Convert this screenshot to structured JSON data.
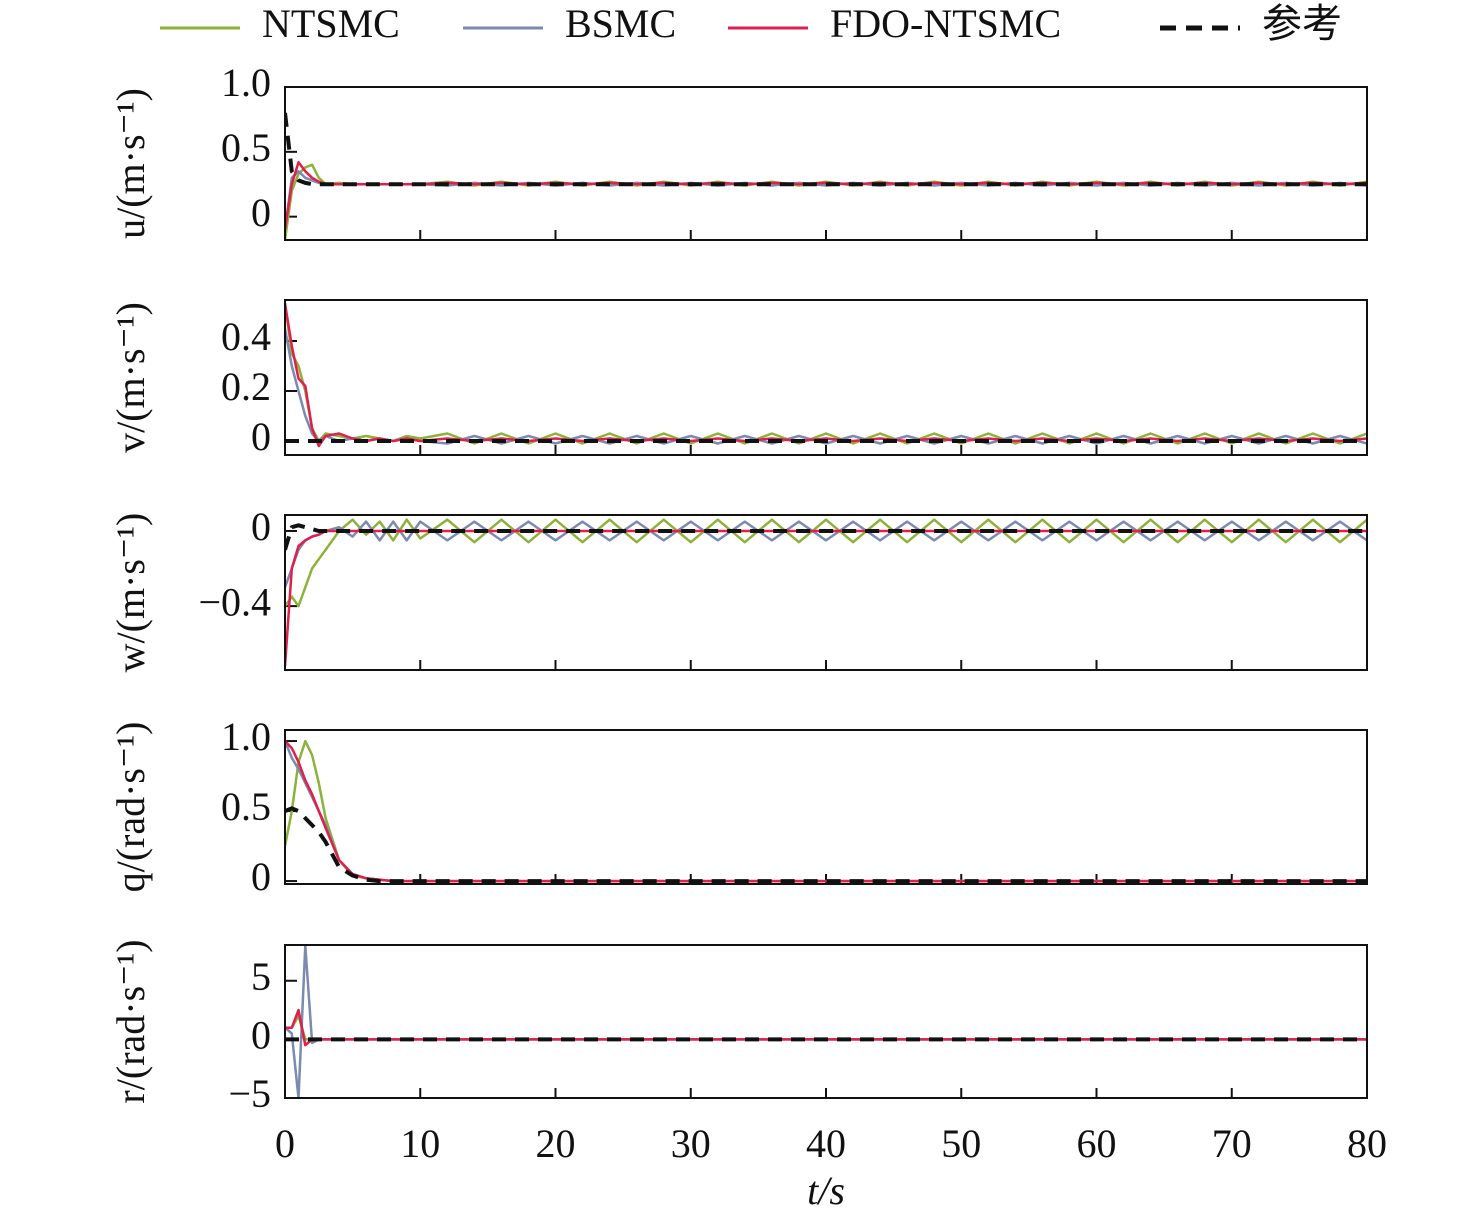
{
  "chart_data": {
    "type": "line",
    "xlabel": "t/s",
    "xlim": [
      0,
      80
    ],
    "xticks": [
      0,
      10,
      20,
      30,
      40,
      50,
      60,
      70,
      80
    ],
    "series": [
      {
        "name": "NTSMC",
        "color": "#8cb23a"
      },
      {
        "name": "BSMC",
        "color": "#7a8ab0"
      },
      {
        "name": "FDO-NTSMC",
        "color": "#e0204a"
      },
      {
        "name": "参考",
        "color": "#111111",
        "dashed": true
      }
    ],
    "x": [
      0,
      0.5,
      1,
      1.5,
      2,
      2.5,
      3,
      4,
      5,
      6,
      7,
      8,
      9,
      10,
      12,
      14,
      16,
      18,
      20,
      22,
      24,
      26,
      28,
      30,
      32,
      34,
      36,
      38,
      40,
      42,
      44,
      46,
      48,
      50,
      52,
      54,
      56,
      58,
      60,
      62,
      64,
      66,
      68,
      70,
      72,
      74,
      76,
      78,
      80
    ],
    "panels": [
      {
        "ylabel": "u/(m·s⁻¹)",
        "ylim": [
          -0.18,
          1.0
        ],
        "yticks": [
          0,
          0.5,
          {
            "value": 1.0,
            "label": "1.0"
          }
        ],
        "values": [
          [
            -0.18,
            0.2,
            0.33,
            0.38,
            0.4,
            0.3,
            0.25,
            0.26,
            0.25,
            0.25,
            0.25,
            0.25,
            0.25,
            0.25,
            0.27,
            0.24,
            0.27,
            0.24,
            0.27,
            0.24,
            0.27,
            0.24,
            0.27,
            0.24,
            0.27,
            0.24,
            0.27,
            0.24,
            0.27,
            0.24,
            0.27,
            0.24,
            0.27,
            0.24,
            0.27,
            0.24,
            0.27,
            0.24,
            0.27,
            0.24,
            0.27,
            0.24,
            0.27,
            0.24,
            0.27,
            0.24,
            0.27,
            0.24,
            0.27
          ],
          [
            -0.1,
            0.3,
            0.35,
            0.3,
            0.28,
            0.26,
            0.25,
            0.25,
            0.25,
            0.25,
            0.25,
            0.25,
            0.25,
            0.25,
            0.24,
            0.26,
            0.24,
            0.26,
            0.24,
            0.26,
            0.24,
            0.26,
            0.24,
            0.26,
            0.24,
            0.26,
            0.24,
            0.26,
            0.24,
            0.26,
            0.24,
            0.26,
            0.24,
            0.26,
            0.24,
            0.26,
            0.24,
            0.26,
            0.24,
            0.26,
            0.24,
            0.26,
            0.24,
            0.26,
            0.24,
            0.26,
            0.24,
            0.26,
            0.24
          ],
          [
            -0.1,
            0.25,
            0.42,
            0.35,
            0.3,
            0.27,
            0.25,
            0.25,
            0.25,
            0.25,
            0.25,
            0.25,
            0.25,
            0.25,
            0.26,
            0.25,
            0.26,
            0.25,
            0.26,
            0.25,
            0.26,
            0.25,
            0.26,
            0.25,
            0.26,
            0.25,
            0.26,
            0.25,
            0.26,
            0.25,
            0.26,
            0.25,
            0.26,
            0.25,
            0.26,
            0.25,
            0.26,
            0.25,
            0.26,
            0.25,
            0.26,
            0.25,
            0.26,
            0.25,
            0.26,
            0.25,
            0.26,
            0.25,
            0.26
          ],
          [
            0.8,
            0.35,
            0.28,
            0.26,
            0.25,
            0.25,
            0.25,
            0.25,
            0.25,
            0.25,
            0.25,
            0.25,
            0.25,
            0.25,
            0.25,
            0.25,
            0.25,
            0.25,
            0.25,
            0.25,
            0.25,
            0.25,
            0.25,
            0.25,
            0.25,
            0.25,
            0.25,
            0.25,
            0.25,
            0.25,
            0.25,
            0.25,
            0.25,
            0.25,
            0.25,
            0.25,
            0.25,
            0.25,
            0.25,
            0.25,
            0.25,
            0.25,
            0.25,
            0.25,
            0.25,
            0.25,
            0.25,
            0.25,
            0.25
          ]
        ]
      },
      {
        "ylabel": "v/(m·s⁻¹)",
        "ylim": [
          -0.056,
          0.564
        ],
        "yticks": [
          0,
          0.2,
          0.4
        ],
        "values": [
          [
            0.55,
            0.35,
            0.3,
            0.2,
            0.05,
            0.0,
            0.03,
            0.02,
            0.01,
            0.02,
            0.01,
            0.0,
            0.02,
            0.01,
            0.03,
            -0.01,
            0.03,
            -0.01,
            0.03,
            -0.01,
            0.03,
            -0.01,
            0.03,
            -0.01,
            0.03,
            -0.01,
            0.03,
            -0.01,
            0.03,
            -0.01,
            0.03,
            -0.01,
            0.03,
            -0.01,
            0.03,
            -0.01,
            0.03,
            -0.01,
            0.03,
            -0.01,
            0.03,
            -0.01,
            0.03,
            -0.01,
            0.03,
            -0.01,
            0.03,
            -0.01,
            0.03
          ],
          [
            0.45,
            0.3,
            0.2,
            0.1,
            0.03,
            0.0,
            0.02,
            0.0,
            0.01,
            0.0,
            0.01,
            0.0,
            0.01,
            0.0,
            -0.01,
            0.02,
            -0.01,
            0.02,
            -0.01,
            0.02,
            -0.01,
            0.02,
            -0.01,
            0.02,
            -0.01,
            0.02,
            -0.01,
            0.02,
            -0.01,
            0.02,
            -0.01,
            0.02,
            -0.01,
            0.02,
            -0.01,
            0.02,
            -0.01,
            0.02,
            -0.01,
            0.02,
            -0.01,
            0.02,
            -0.01,
            0.02,
            -0.01,
            0.02,
            -0.01,
            0.02,
            -0.01
          ],
          [
            0.55,
            0.38,
            0.25,
            0.22,
            0.05,
            -0.02,
            0.02,
            0.03,
            0.01,
            0.0,
            0.01,
            0.0,
            0.01,
            0.0,
            0.01,
            0.0,
            0.01,
            0.0,
            0.01,
            0.0,
            0.01,
            0.0,
            0.01,
            0.0,
            0.01,
            0.0,
            0.01,
            0.0,
            0.01,
            0.0,
            0.01,
            0.0,
            0.01,
            0.0,
            0.01,
            0.0,
            0.01,
            0.0,
            0.01,
            0.0,
            0.01,
            0.0,
            0.01,
            0.0,
            0.01,
            0.0,
            0.01,
            0.0,
            0.01
          ],
          [
            0,
            0,
            0,
            0,
            0,
            0,
            0,
            0,
            0,
            0,
            0,
            0,
            0,
            0,
            0,
            0,
            0,
            0,
            0,
            0,
            0,
            0,
            0,
            0,
            0,
            0,
            0,
            0,
            0,
            0,
            0,
            0,
            0,
            0,
            0,
            0,
            0,
            0,
            0,
            0,
            0,
            0,
            0,
            0,
            0,
            0,
            0,
            0,
            0
          ]
        ]
      },
      {
        "ylabel": "w/(m·s⁻¹)",
        "ylim": [
          -0.74,
          0.085
        ],
        "yticks": [
          {
            "value": -0.4,
            "label": "−0.4"
          },
          0
        ],
        "values": [
          [
            -0.4,
            -0.35,
            -0.4,
            -0.3,
            -0.2,
            -0.15,
            -0.1,
            0,
            0.06,
            -0.02,
            0.05,
            -0.05,
            0.06,
            -0.04,
            0.06,
            -0.06,
            0.06,
            -0.06,
            0.06,
            -0.06,
            0.06,
            -0.06,
            0.06,
            -0.06,
            0.06,
            -0.06,
            0.06,
            -0.06,
            0.06,
            -0.06,
            0.06,
            -0.06,
            0.06,
            -0.06,
            0.06,
            -0.06,
            0.06,
            -0.06,
            0.06,
            -0.06,
            0.06,
            -0.06,
            0.06,
            -0.06,
            0.06,
            -0.06,
            0.06,
            -0.06,
            0.06
          ],
          [
            -0.3,
            -0.2,
            -0.1,
            -0.05,
            -0.03,
            -0.02,
            0,
            0.02,
            -0.03,
            0.05,
            -0.05,
            0.05,
            -0.05,
            0.05,
            -0.05,
            0.05,
            -0.05,
            0.05,
            -0.05,
            0.05,
            -0.05,
            0.05,
            -0.05,
            0.05,
            -0.05,
            0.05,
            -0.05,
            0.05,
            -0.05,
            0.05,
            -0.05,
            0.05,
            -0.05,
            0.05,
            -0.05,
            0.05,
            -0.05,
            0.05,
            -0.05,
            0.05,
            -0.05,
            0.05,
            -0.05,
            0.05,
            -0.05,
            0.05,
            -0.05,
            0.05,
            -0.05
          ],
          [
            -0.72,
            -0.2,
            -0.08,
            -0.05,
            -0.03,
            -0.02,
            0,
            0,
            0,
            0,
            0,
            0,
            0,
            0,
            0,
            0,
            0,
            0,
            0,
            0,
            0,
            0,
            0,
            0,
            0,
            0,
            0,
            0,
            0,
            0,
            0,
            0,
            0,
            0,
            0,
            0,
            0,
            0,
            0,
            0,
            0,
            0,
            0,
            0,
            0,
            0,
            0,
            0,
            0
          ],
          [
            -0.1,
            0.02,
            0.03,
            0.02,
            0.01,
            0,
            0,
            0,
            0,
            0,
            0,
            0,
            0,
            0,
            0,
            0,
            0,
            0,
            0,
            0,
            0,
            0,
            0,
            0,
            0,
            0,
            0,
            0,
            0,
            0,
            0,
            0,
            0,
            0,
            0,
            0,
            0,
            0,
            0,
            0,
            0,
            0,
            0,
            0,
            0,
            0,
            0,
            0,
            0
          ]
        ]
      },
      {
        "ylabel": "q/(rad·s⁻¹)",
        "ylim": [
          -0.021,
          1.079
        ],
        "yticks": [
          0,
          0.5,
          {
            "value": 1.0,
            "label": "1.0"
          }
        ],
        "values": [
          [
            0.25,
            0.5,
            0.85,
            1.0,
            0.9,
            0.7,
            0.45,
            0.15,
            0.04,
            0.02,
            0.01,
            0,
            0,
            0,
            0,
            0,
            0,
            0,
            0,
            0,
            0,
            0,
            0,
            0,
            0,
            0,
            0,
            0,
            0,
            0,
            0,
            0,
            0,
            0,
            0,
            0,
            0,
            0,
            0,
            0,
            0,
            0,
            0,
            0,
            0,
            0,
            0,
            0,
            0
          ],
          [
            1.0,
            0.88,
            0.8,
            0.7,
            0.6,
            0.5,
            0.4,
            0.15,
            0.05,
            0.02,
            0.01,
            0,
            0,
            0,
            0,
            0,
            0,
            0,
            0,
            0,
            0,
            0,
            0,
            0,
            0,
            0,
            0,
            0,
            0,
            0,
            0,
            0,
            0,
            0,
            0,
            0,
            0,
            0,
            0,
            0,
            0,
            0,
            0,
            0,
            0,
            0,
            0,
            0,
            0
          ],
          [
            1.0,
            0.95,
            0.85,
            0.72,
            0.62,
            0.5,
            0.38,
            0.15,
            0.05,
            0.02,
            0.01,
            0,
            0,
            0,
            0,
            0,
            0,
            0,
            0,
            0,
            0,
            0,
            0,
            0,
            0,
            0,
            0,
            0,
            0,
            0,
            0,
            0,
            0,
            0,
            0,
            0,
            0,
            0,
            0,
            0,
            0,
            0,
            0,
            0,
            0,
            0,
            0,
            0,
            0
          ],
          [
            0.5,
            0.52,
            0.5,
            0.45,
            0.4,
            0.35,
            0.28,
            0.1,
            0.04,
            0.01,
            0,
            0,
            0,
            0,
            0,
            0,
            0,
            0,
            0,
            0,
            0,
            0,
            0,
            0,
            0,
            0,
            0,
            0,
            0,
            0,
            0,
            0,
            0,
            0,
            0,
            0,
            0,
            0,
            0,
            0,
            0,
            0,
            0,
            0,
            0,
            0,
            0,
            0,
            0
          ]
        ]
      },
      {
        "ylabel": "r/(rad·s⁻¹)",
        "ylim": [
          -5,
          8.05
        ],
        "yticks": [
          {
            "value": -5,
            "label": "−5"
          },
          0,
          5
        ],
        "values": [
          [
            1,
            1,
            2,
            0,
            0,
            0,
            0,
            0,
            0,
            0,
            0,
            0,
            0,
            0,
            0,
            0,
            0,
            0,
            0,
            0,
            0,
            0,
            0,
            0,
            0,
            0,
            0,
            0,
            0,
            0,
            0,
            0,
            0,
            0,
            0,
            0,
            0,
            0,
            0,
            0,
            0,
            0,
            0,
            0,
            0,
            0,
            0,
            0,
            0
          ],
          [
            1,
            0.5,
            -5,
            8,
            -0.3,
            0,
            0,
            0,
            0,
            0,
            0,
            0,
            0,
            0,
            0,
            0,
            0,
            0,
            0,
            0,
            0,
            0,
            0,
            0,
            0,
            0,
            0,
            0,
            0,
            0,
            0,
            0,
            0,
            0,
            0,
            0,
            0,
            0,
            0,
            0,
            0,
            0,
            0,
            0,
            0,
            0,
            0,
            0,
            0
          ],
          [
            1,
            1,
            2.5,
            -0.5,
            0,
            0,
            0,
            0,
            0,
            0,
            0,
            0,
            0,
            0,
            0,
            0,
            0,
            0,
            0,
            0,
            0,
            0,
            0,
            0,
            0,
            0,
            0,
            0,
            0,
            0,
            0,
            0,
            0,
            0,
            0,
            0,
            0,
            0,
            0,
            0,
            0,
            0,
            0,
            0,
            0,
            0,
            0,
            0,
            0
          ],
          [
            0,
            0,
            0,
            0,
            0,
            0,
            0,
            0,
            0,
            0,
            0,
            0,
            0,
            0,
            0,
            0,
            0,
            0,
            0,
            0,
            0,
            0,
            0,
            0,
            0,
            0,
            0,
            0,
            0,
            0,
            0,
            0,
            0,
            0,
            0,
            0,
            0,
            0,
            0,
            0,
            0,
            0,
            0,
            0,
            0,
            0,
            0,
            0,
            0
          ]
        ]
      }
    ]
  }
}
